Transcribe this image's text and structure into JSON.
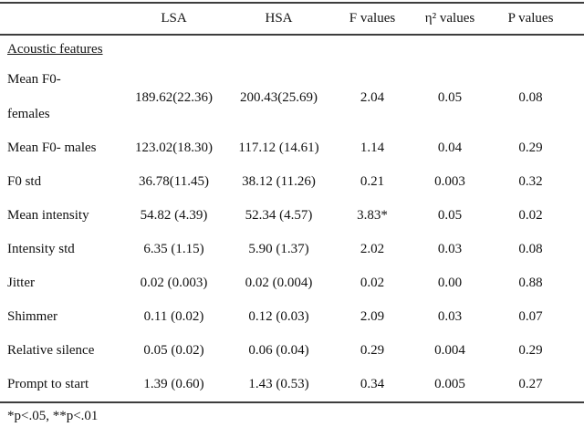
{
  "page": {
    "background": "#ffffff",
    "text_color": "#121212",
    "rule_color": "#3d3d3d"
  },
  "table": {
    "columns": [
      "",
      "LSA",
      "HSA",
      "F values",
      "η² values",
      "P values"
    ],
    "section_header": "Acoustic features",
    "rows": [
      {
        "label": "Mean F0-",
        "label2": "females",
        "lsa": "189.62(22.36)",
        "hsa": "200.43(25.69)",
        "f": "2.04",
        "eta2": "0.05",
        "p": "0.08"
      },
      {
        "label": "Mean F0- males",
        "lsa": "123.02(18.30)",
        "hsa": "117.12 (14.61)",
        "f": "1.14",
        "eta2": "0.04",
        "p": "0.29"
      },
      {
        "label": "F0 std",
        "lsa": "36.78(11.45)",
        "hsa": "38.12 (11.26)",
        "f": "0.21",
        "eta2": "0.003",
        "p": "0.32"
      },
      {
        "label": "Mean intensity",
        "lsa": "54.82 (4.39)",
        "hsa": "52.34 (4.57)",
        "f": "3.83*",
        "eta2": "0.05",
        "p": "0.02"
      },
      {
        "label": "Intensity std",
        "lsa": "6.35 (1.15)",
        "hsa": "5.90 (1.37)",
        "f": "2.02",
        "eta2": "0.03",
        "p": "0.08"
      },
      {
        "label": "Jitter",
        "lsa": "0.02 (0.003)",
        "hsa": "0.02 (0.004)",
        "f": "0.02",
        "eta2": "0.00",
        "p": "0.88"
      },
      {
        "label": "Shimmer",
        "lsa": "0.11 (0.02)",
        "hsa": "0.12 (0.03)",
        "f": "2.09",
        "eta2": "0.03",
        "p": "0.07"
      },
      {
        "label": "Relative silence",
        "lsa": "0.05 (0.02)",
        "hsa": "0.06 (0.04)",
        "f": "0.29",
        "eta2": "0.004",
        "p": "0.29"
      },
      {
        "label": "Prompt to start",
        "lsa": "1.39 (0.60)",
        "hsa": "1.43 (0.53)",
        "f": "0.34",
        "eta2": "0.005",
        "p": "0.27"
      }
    ],
    "footnote": "*p<.05, **p<.01"
  }
}
